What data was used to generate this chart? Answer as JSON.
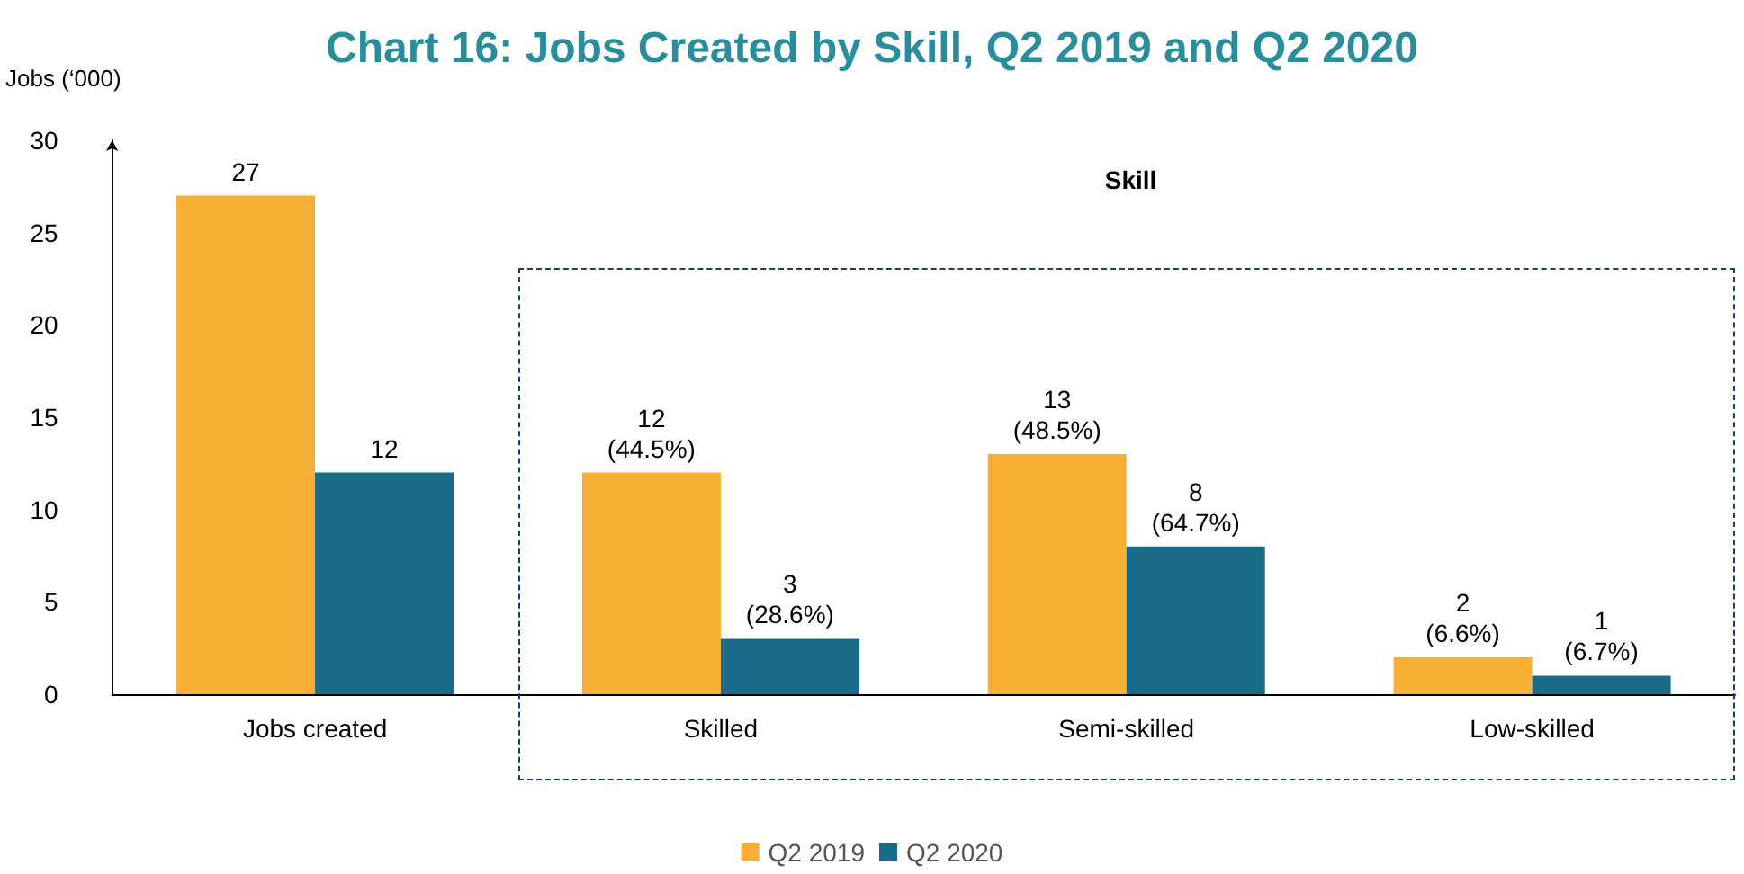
{
  "chart_data": {
    "type": "bar",
    "title": "Chart 16: Jobs Created by Skill, Q2 2019 and Q2 2020",
    "ylabel": "Jobs (‘000)",
    "categories": [
      "Jobs created",
      "Skilled",
      "Semi-skilled",
      "Low-skilled"
    ],
    "series": [
      {
        "name": "Q2 2019",
        "color": "#f7b035",
        "values": [
          27,
          12,
          13,
          2
        ],
        "value_labels": [
          "27",
          "12\n(44.5%)",
          "13\n(48.5%)",
          "2\n(6.6%)"
        ]
      },
      {
        "name": "Q2 2020",
        "color": "#1a6b87",
        "values": [
          12,
          3,
          8,
          1
        ],
        "value_labels": [
          "12",
          "3\n(28.6%)",
          "8\n(64.7%)",
          "1\n(6.7%)"
        ]
      }
    ],
    "annotations": [
      "Skill"
    ],
    "ylim": [
      0,
      30
    ],
    "yticks": [
      0,
      5,
      10,
      15,
      20,
      25,
      30
    ],
    "grid": false,
    "legend": "bottom"
  }
}
